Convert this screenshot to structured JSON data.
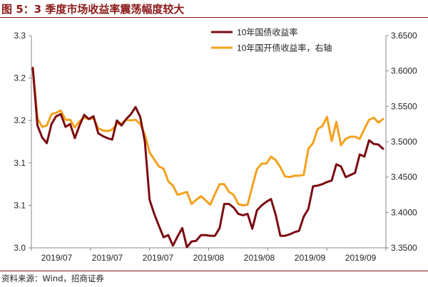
{
  "figure": {
    "title": "图 5：3 季度市场收益率震荡幅度较大",
    "source": "资料来源：Wind，招商证券"
  },
  "colors": {
    "title": "#8b1a1a",
    "series_1": "#7b0c12",
    "series_2": "#f5a11c",
    "axis": "#888888",
    "text": "#222222"
  },
  "chart_data": {
    "type": "line",
    "title": "图 5：3 季度市场收益率震荡幅度较大",
    "x_tick_labels": [
      "2019/07",
      "2019/07",
      "2019/07",
      "2019/08",
      "2019/08",
      "2019/09",
      "2019/09"
    ],
    "y_left": {
      "range": [
        3.0,
        3.3
      ],
      "ticks": [
        "3.3",
        "3.2",
        "3.2",
        "3.1",
        "3.1",
        "3.0"
      ]
    },
    "y_right": {
      "range": [
        3.35,
        3.65
      ],
      "ticks": [
        "3.6500",
        "3.6000",
        "3.5500",
        "3.5000",
        "3.4500",
        "3.4000",
        "3.3500"
      ]
    },
    "legend_position": "top-right",
    "grid": false,
    "series": [
      {
        "name": "10年国债收益率",
        "axis": "left",
        "values": [
          3.254,
          3.173,
          3.156,
          3.148,
          3.175,
          3.186,
          3.189,
          3.171,
          3.175,
          3.155,
          3.173,
          3.188,
          3.182,
          3.186,
          3.162,
          3.158,
          3.155,
          3.153,
          3.18,
          3.173,
          3.182,
          3.189,
          3.199,
          3.185,
          3.15,
          3.068,
          3.048,
          3.031,
          3.015,
          3.018,
          3.003,
          3.016,
          3.028,
          3.001,
          3.009,
          3.01,
          3.018,
          3.018,
          3.017,
          3.017,
          3.028,
          3.062,
          3.062,
          3.057,
          3.048,
          3.046,
          3.048,
          3.027,
          3.053,
          3.06,
          3.065,
          3.069,
          3.047,
          3.017,
          3.017,
          3.019,
          3.022,
          3.024,
          3.044,
          3.055,
          3.087,
          3.088,
          3.09,
          3.093,
          3.095,
          3.118,
          3.115,
          3.1,
          3.103,
          3.106,
          3.132,
          3.129,
          3.152,
          3.147,
          3.146,
          3.14
        ]
      },
      {
        "name": "10年国开债收益率，右轴",
        "axis": "right",
        "values": [
          3.605,
          3.533,
          3.521,
          3.523,
          3.539,
          3.541,
          3.544,
          3.531,
          3.531,
          3.52,
          3.529,
          3.534,
          3.532,
          3.533,
          3.519,
          3.516,
          3.515,
          3.517,
          3.525,
          3.526,
          3.531,
          3.53,
          3.531,
          3.525,
          3.51,
          3.485,
          3.475,
          3.465,
          3.462,
          3.444,
          3.438,
          3.425,
          3.427,
          3.429,
          3.412,
          3.418,
          3.423,
          3.417,
          3.411,
          3.426,
          3.44,
          3.44,
          3.429,
          3.425,
          3.412,
          3.41,
          3.411,
          3.437,
          3.461,
          3.469,
          3.469,
          3.479,
          3.474,
          3.464,
          3.451,
          3.45,
          3.452,
          3.452,
          3.453,
          3.49,
          3.498,
          3.518,
          3.522,
          3.535,
          3.501,
          3.528,
          3.495,
          3.504,
          3.507,
          3.507,
          3.504,
          3.518,
          3.531,
          3.534,
          3.527,
          3.532
        ]
      }
    ]
  }
}
